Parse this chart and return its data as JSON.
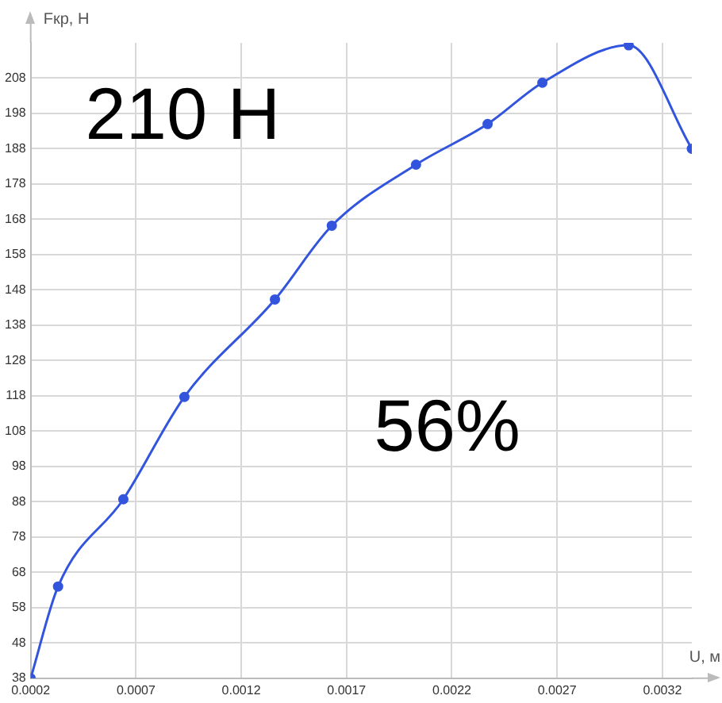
{
  "chart_data": {
    "type": "line",
    "xlabel": "U, м",
    "ylabel": "Fкр, Н",
    "annotations": [
      "210 Н",
      "56%"
    ],
    "x": [
      0.0002,
      0.00033,
      0.00064,
      0.00093,
      0.00136,
      0.00163,
      0.00203,
      0.00237,
      0.00263,
      0.00304,
      0.00334
    ],
    "series": [
      {
        "color": "#3355dd",
        "values": [
          38,
          64,
          88.7,
          117.7,
          145.3,
          166.2,
          183.5,
          195,
          206.7,
          217.3,
          188
        ]
      }
    ],
    "xlim": [
      0.0002,
      0.00334
    ],
    "ylim": [
      38,
      218
    ],
    "xticks": [
      0.0002,
      0.0007,
      0.0012,
      0.0017,
      0.0022,
      0.0027,
      0.0032
    ],
    "yticks": [
      38,
      48,
      58,
      68,
      78,
      88,
      98,
      108,
      118,
      128,
      138,
      148,
      158,
      168,
      178,
      188,
      198,
      208
    ],
    "grid": true,
    "legend": false,
    "marker": "circle",
    "line_style": "solid"
  }
}
